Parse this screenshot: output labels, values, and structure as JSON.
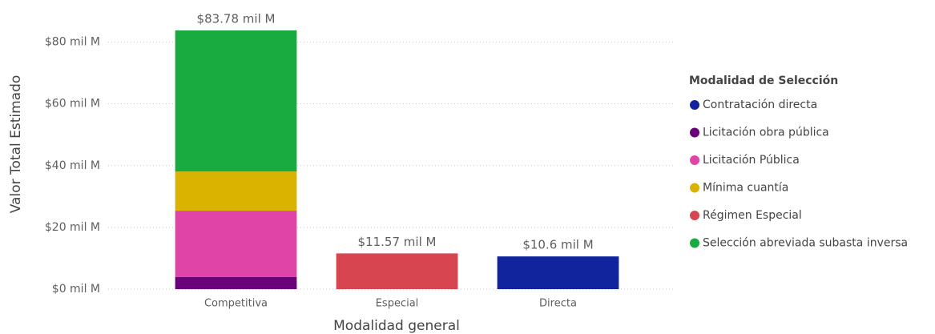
{
  "chart_data": {
    "type": "stacked_bar",
    "categories": [
      "Competitiva",
      "Especial",
      "Directa"
    ],
    "series": [
      {
        "name": "Contratación directa",
        "color": "#12239e",
        "values": [
          null,
          null,
          10.6
        ]
      },
      {
        "name": "Licitación obra pública",
        "color": "#6b007b",
        "values": [
          3.9,
          null,
          null
        ]
      },
      {
        "name": "Licitación Pública",
        "color": "#e044a7",
        "values": [
          21.5,
          null,
          null
        ]
      },
      {
        "name": "Mínima cuantía",
        "color": "#d9b300",
        "values": [
          12.7,
          null,
          null
        ]
      },
      {
        "name": "Régimen Especial",
        "color": "#d64550",
        "values": [
          null,
          11.57,
          null
        ]
      },
      {
        "name": "Selección abreviada subasta inversa",
        "color": "#1aab40",
        "values": [
          45.68,
          null,
          null
        ]
      }
    ],
    "totals": [
      83.78,
      11.57,
      10.6
    ],
    "total_labels": [
      "$83.78 mil M",
      "$11.57 mil M",
      "$10.6 mil M"
    ],
    "ylim": [
      0,
      83.78
    ],
    "yticks": [
      {
        "value": 0,
        "label": "$0 mil M"
      },
      {
        "value": 20,
        "label": "$20 mil M"
      },
      {
        "value": 40,
        "label": "$40 mil M"
      },
      {
        "value": 60,
        "label": "$60 mil M"
      },
      {
        "value": 80,
        "label": "$80 mil M"
      }
    ],
    "y_label": "Valor Total Estimado",
    "x_label": "Modalidad general",
    "legend_title": "Modalidad de Selección",
    "legend": "right",
    "grid": true
  }
}
